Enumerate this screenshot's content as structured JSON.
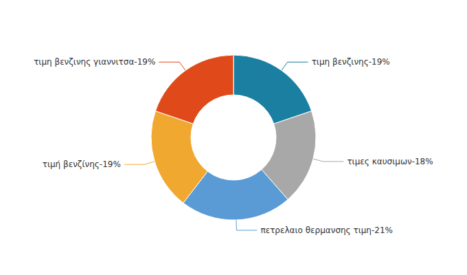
{
  "chart_data": {
    "type": "pie",
    "categories": [
      "τιμη βενζινης-19%",
      "τιμες καυσιμων-18%",
      "πετρελαιο θερμανσης τιμη-21%",
      "τιμή βενζίνης-19%",
      "τιμη βενζινης γιαννιτσα-19%"
    ],
    "values": [
      19,
      18,
      21,
      19,
      19
    ],
    "colors": [
      "#1a7fa0",
      "#a8a8a8",
      "#5b9bd5",
      "#f0a830",
      "#e04a1a"
    ]
  }
}
